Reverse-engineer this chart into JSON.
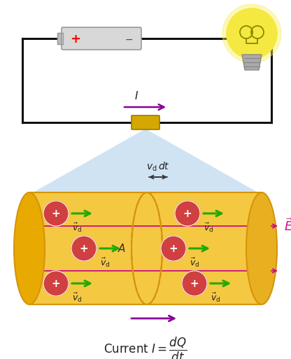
{
  "bg_color": "#ffffff",
  "wire_color": "#111111",
  "battery_body_color": "#d8d8d8",
  "battery_edge_color": "#999999",
  "bulb_yellow": "#f5e840",
  "bulb_outline": "#cccc00",
  "connector_color": "#d4a800",
  "cone_color": "#b8d4ee",
  "cyl_body_color": "#f5c842",
  "cyl_edge_color": "#d4950a",
  "cyl_end_color": "#e8b020",
  "cross_sec_color": "#c8950a",
  "particle_color": "#d04040",
  "particle_plus_color": "#ffffff",
  "arrow_green": "#22aa00",
  "arrow_purple": "#880099",
  "arrow_pink": "#cc1080",
  "E_color": "#cc1080",
  "bracket_color": "#333333",
  "text_color": "#222222"
}
